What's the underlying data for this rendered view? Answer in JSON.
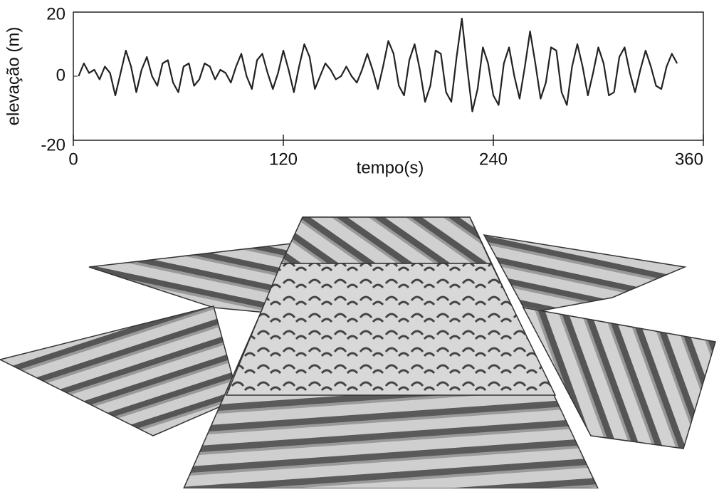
{
  "chart_data": {
    "type": "line",
    "x_label": "tempo(s)",
    "y_label": "elevação (m)",
    "xlim": [
      0,
      360
    ],
    "xticks": [
      0,
      120,
      240,
      360
    ],
    "ylim": [
      -20,
      20
    ],
    "yticks": [
      -20,
      0,
      20
    ],
    "series": [
      {
        "color": "#222222",
        "x": [
          3,
          6,
          9,
          12,
          15,
          18,
          21,
          24,
          27,
          30,
          33,
          36,
          39,
          42,
          45,
          48,
          51,
          54,
          57,
          60,
          63,
          66,
          69,
          72,
          75,
          78,
          81,
          84,
          87,
          90,
          93,
          96,
          99,
          102,
          105,
          108,
          111,
          114,
          117,
          120,
          123,
          126,
          129,
          132,
          135,
          138,
          141,
          144,
          147,
          150,
          153,
          156,
          159,
          162,
          165,
          168,
          171,
          174,
          177,
          180,
          183,
          186,
          189,
          192,
          195,
          198,
          201,
          204,
          207,
          210,
          213,
          216,
          219,
          222,
          225,
          228,
          231,
          234,
          237,
          240,
          243,
          246,
          249,
          252,
          255,
          258,
          261,
          264,
          267,
          270,
          273,
          276,
          279,
          282,
          285,
          288,
          291,
          294,
          297,
          300,
          303,
          306,
          309,
          312,
          315,
          318,
          321,
          324,
          327,
          330,
          333,
          336,
          339,
          342,
          345
        ],
        "values": [
          0,
          4,
          1,
          2,
          -1,
          3,
          1,
          -6,
          1,
          8,
          3,
          -5,
          2,
          6,
          0,
          -3,
          4,
          5,
          -2,
          -5,
          3,
          4,
          -3,
          -1,
          4,
          3,
          -1,
          2,
          1,
          -2,
          3,
          7,
          0,
          -4,
          5,
          7,
          1,
          -4,
          1,
          8,
          2,
          -5,
          3,
          10,
          6,
          -4,
          0,
          4,
          2,
          -1,
          0,
          3,
          0,
          -2,
          2,
          7,
          2,
          -4,
          3,
          11,
          7,
          -3,
          -6,
          5,
          10,
          2,
          -8,
          -3,
          8,
          7,
          -5,
          -8,
          6,
          18,
          3,
          -11,
          -4,
          9,
          4,
          -6,
          -9,
          4,
          9,
          0,
          -7,
          3,
          14,
          4,
          -7,
          -2,
          9,
          8,
          -5,
          -9,
          3,
          10,
          3,
          -6,
          1,
          9,
          4,
          -6,
          -5,
          6,
          9,
          1,
          -5,
          2,
          8,
          3,
          -3,
          -4,
          3,
          7,
          4
        ]
      }
    ]
  }
}
